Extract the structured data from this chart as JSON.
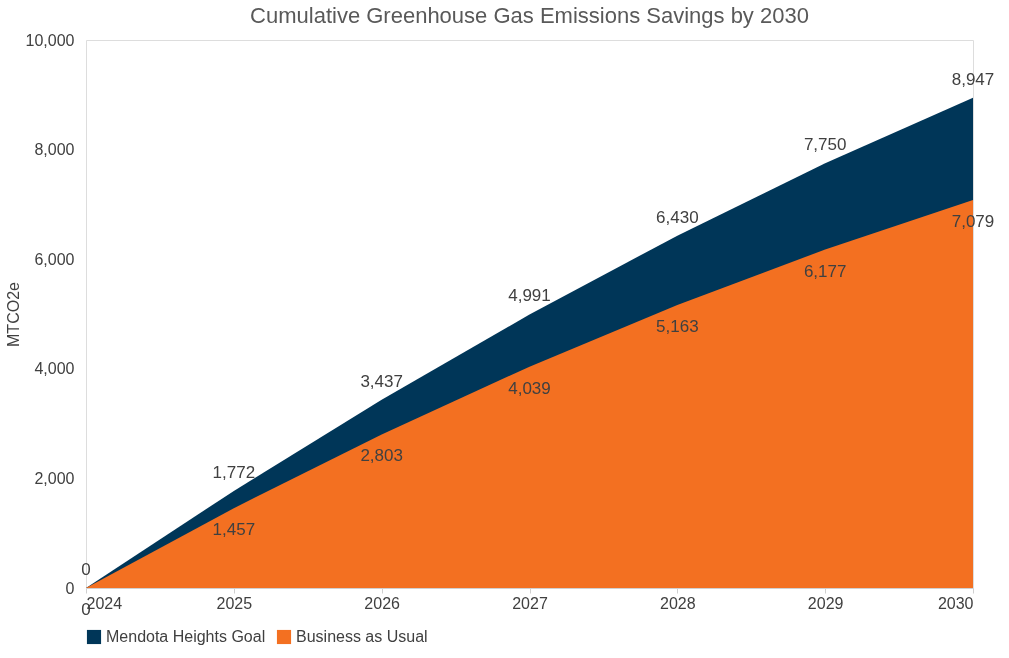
{
  "chart_data": {
    "type": "area",
    "title": "Cumulative Greenhouse Gas Emissions Savings by 2030",
    "ylabel": "MTCO2e",
    "categories": [
      "2024",
      "2025",
      "2026",
      "2027",
      "2028",
      "2029",
      "2030"
    ],
    "series": [
      {
        "name": "Mendota Heights Goal",
        "color": "#003658",
        "values": [
          0,
          1772,
          3437,
          4991,
          6430,
          7750,
          8947
        ],
        "value_labels": [
          "0",
          "1,772",
          "3,437",
          "4,991",
          "6,430",
          "7,750",
          "8,947"
        ]
      },
      {
        "name": "Business as Usual",
        "color": "#f37021",
        "values": [
          0,
          1457,
          2803,
          4039,
          5163,
          6177,
          7079
        ],
        "value_labels": [
          "0",
          "1,457",
          "2,803",
          "4,039",
          "5,163",
          "6,177",
          "7,079"
        ]
      }
    ],
    "ylim": [
      0,
      10000
    ],
    "yticks": [
      {
        "value": 0,
        "label": "0"
      },
      {
        "value": 2000,
        "label": "2,000"
      },
      {
        "value": 4000,
        "label": "4,000"
      },
      {
        "value": 6000,
        "label": "6,000"
      },
      {
        "value": 8000,
        "label": "8,000"
      },
      {
        "value": 10000,
        "label": "10,000"
      }
    ],
    "grid": false,
    "legend": "bottom"
  }
}
